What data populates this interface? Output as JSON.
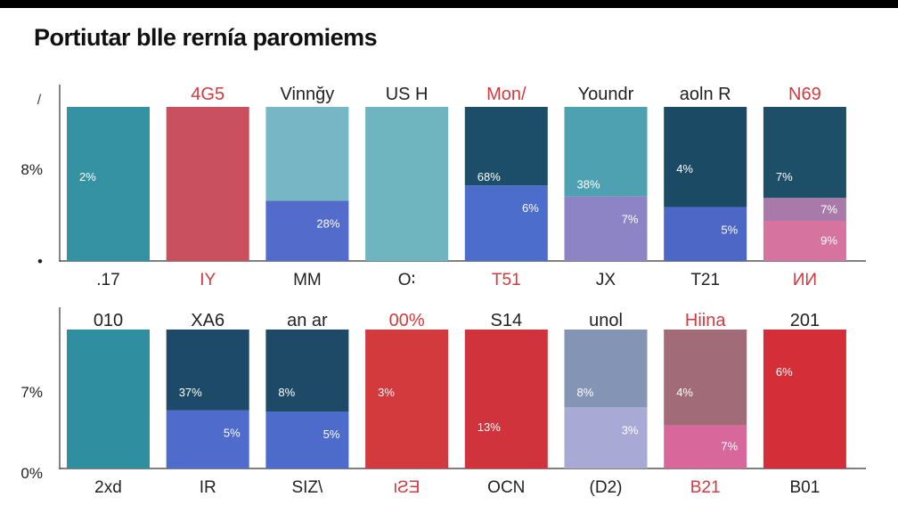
{
  "title": "Portiutar blle rernía  paromiems",
  "chart_data": [
    {
      "type": "bar",
      "stacked": true,
      "grid": false,
      "legend": "none",
      "y_ticks": [
        "8%",
        "•"
      ],
      "y_tick_marks": [
        "/"
      ],
      "bars": [
        {
          "top_label": "",
          "category": ".17",
          "highlight": false,
          "segments": [
            {
              "value": 100,
              "color": "#3592a3",
              "label": ""
            }
          ],
          "inner_labels": [
            {
              "text": "2%",
              "at": 0.55
            }
          ]
        },
        {
          "top_label": "4G5",
          "category": "IY",
          "highlight": true,
          "segments": [
            {
              "value": 100,
              "color": "#c9505f",
              "label": ""
            }
          ],
          "inner_labels": []
        },
        {
          "top_label": "Vinnğy",
          "category": "MM",
          "highlight": false,
          "segments": [
            {
              "value": 39,
              "color": "#536bcb",
              "label": "28%"
            },
            {
              "value": 61,
              "color": "#77b6c4",
              "label": ""
            }
          ],
          "inner_labels": []
        },
        {
          "top_label": "US H",
          "category": "O∶",
          "highlight": false,
          "segments": [
            {
              "value": 100,
              "color": "#6eb5c0",
              "label": ""
            }
          ],
          "inner_labels": []
        },
        {
          "top_label": "Mon/",
          "category": "T51",
          "highlight": true,
          "segments": [
            {
              "value": 49,
              "color": "#4c6dcc",
              "label": "6%"
            },
            {
              "value": 51,
              "color": "#1c4d69",
              "label": ""
            }
          ],
          "inner_labels": [
            {
              "text": "68%",
              "at": 0.55
            }
          ]
        },
        {
          "top_label": "Youndr",
          "category": "JX",
          "highlight": false,
          "segments": [
            {
              "value": 42,
              "color": "#8d84c6",
              "label": "7%"
            },
            {
              "value": 58,
              "color": "#4ea1b1",
              "label": ""
            }
          ],
          "inner_labels": [
            {
              "text": "38%",
              "at": 0.5
            }
          ]
        },
        {
          "top_label": "aoln R",
          "category": "T21",
          "highlight": false,
          "segments": [
            {
              "value": 35,
              "color": "#4d67c7",
              "label": "5%"
            },
            {
              "value": 65,
              "color": "#1b4a65",
              "label": ""
            }
          ],
          "inner_labels": [
            {
              "text": "4%",
              "at": 0.6
            }
          ]
        },
        {
          "top_label": "N69",
          "category": "ИИ",
          "highlight": true,
          "segments": [
            {
              "value": 26,
              "color": "#d6739f",
              "label": "9%"
            },
            {
              "value": 15,
              "color": "#a97aa9",
              "label": "7%"
            },
            {
              "value": 59,
              "color": "#1d4f69",
              "label": ""
            }
          ],
          "inner_labels": [
            {
              "text": "7%",
              "at": 0.55
            }
          ]
        }
      ]
    },
    {
      "type": "bar",
      "stacked": true,
      "grid": false,
      "legend": "none",
      "y_ticks": [
        "7%",
        "0%"
      ],
      "y_tick_marks": [],
      "bars": [
        {
          "top_label": "010",
          "category": "2xd",
          "highlight": false,
          "segments": [
            {
              "value": 100,
              "color": "#2f8fa0",
              "label": ""
            }
          ],
          "inner_labels": []
        },
        {
          "top_label": "XA6",
          "category": "IR",
          "highlight": false,
          "segments": [
            {
              "value": 42,
              "color": "#4f6bcc",
              "label": "5%"
            },
            {
              "value": 58,
              "color": "#1d4a68",
              "label": ""
            }
          ],
          "inner_labels": [
            {
              "text": "37%",
              "at": 0.55
            }
          ]
        },
        {
          "top_label": "an ar",
          "category": "SIZ\\",
          "highlight": false,
          "segments": [
            {
              "value": 41,
              "color": "#4d6bcb",
              "label": "5%"
            },
            {
              "value": 59,
              "color": "#1e4a67",
              "label": ""
            }
          ],
          "inner_labels": [
            {
              "text": "8%",
              "at": 0.55
            }
          ]
        },
        {
          "top_label": "00%",
          "category": "ιƧƎ",
          "highlight": true,
          "segments": [
            {
              "value": 100,
              "color": "#d23a3e",
              "label": ""
            }
          ],
          "inner_labels": [
            {
              "text": "3%",
              "at": 0.55
            }
          ]
        },
        {
          "top_label": "S14",
          "category": "OCN",
          "highlight": false,
          "segments": [
            {
              "value": 100,
              "color": "#d0333c",
              "label": ""
            }
          ],
          "inner_labels": [
            {
              "text": "13%",
              "at": 0.3
            }
          ]
        },
        {
          "top_label": "unol",
          "category": "(D2)",
          "highlight": false,
          "segments": [
            {
              "value": 44,
              "color": "#a9a9d6",
              "label": "3%"
            },
            {
              "value": 56,
              "color": "#8494b4",
              "label": ""
            }
          ],
          "inner_labels": [
            {
              "text": "8%",
              "at": 0.55
            }
          ]
        },
        {
          "top_label": "Hiina",
          "category": "B21",
          "highlight": true,
          "segments": [
            {
              "value": 31,
              "color": "#d8679c",
              "label": "7%"
            },
            {
              "value": 69,
              "color": "#a26b78",
              "label": ""
            }
          ],
          "inner_labels": [
            {
              "text": "4%",
              "at": 0.55
            }
          ]
        },
        {
          "top_label": "201",
          "category": "B01",
          "highlight": false,
          "segments": [
            {
              "value": 100,
              "color": "#d42f38",
              "label": ""
            }
          ],
          "inner_labels": [
            {
              "text": "6%",
              "at": 0.7
            }
          ]
        }
      ]
    }
  ],
  "colors": {
    "highlight_text": "#d23a3e",
    "text": "#222222",
    "axis": "#333333"
  }
}
